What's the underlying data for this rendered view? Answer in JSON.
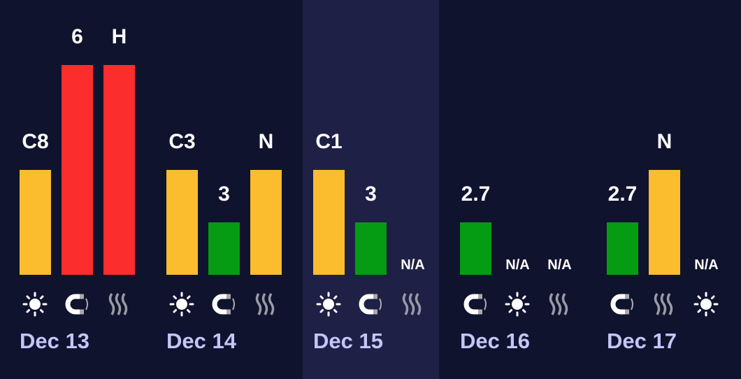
{
  "colors": {
    "yellow": "#fbbc2e",
    "red": "#fc2d2d",
    "green": "#059b12"
  },
  "days": [
    {
      "date": "Dec 13",
      "highlight": false,
      "items": [
        {
          "icon": "sun-icon",
          "label": "C8",
          "level": 0.5,
          "color": "yellow"
        },
        {
          "icon": "magnet-icon",
          "label": "6",
          "level": 1,
          "color": "red"
        },
        {
          "icon": "waves-icon",
          "label": "H",
          "level": 1,
          "color": "red"
        }
      ]
    },
    {
      "date": "Dec 14",
      "highlight": false,
      "items": [
        {
          "icon": "sun-icon",
          "label": "C3",
          "level": 0.5,
          "color": "yellow"
        },
        {
          "icon": "magnet-icon",
          "label": "3",
          "level": 0.25,
          "color": "green"
        },
        {
          "icon": "waves-icon",
          "label": "N",
          "level": 0.5,
          "color": "yellow"
        }
      ]
    },
    {
      "date": "Dec 15",
      "highlight": true,
      "items": [
        {
          "icon": "sun-icon",
          "label": "C1",
          "level": 0.5,
          "color": "yellow"
        },
        {
          "icon": "magnet-icon",
          "label": "3",
          "level": 0.25,
          "color": "green"
        },
        {
          "icon": "waves-icon",
          "label": "N/A",
          "level": 0,
          "color": null
        }
      ]
    },
    {
      "date": "Dec 16",
      "highlight": false,
      "items": [
        {
          "icon": "magnet-icon",
          "label": "2.7",
          "level": 0.25,
          "color": "green"
        },
        {
          "icon": "sun-icon",
          "label": "N/A",
          "level": 0,
          "color": null
        },
        {
          "icon": "waves-icon",
          "label": "N/A",
          "level": 0,
          "color": null
        }
      ]
    },
    {
      "date": "Dec 17",
      "highlight": false,
      "items": [
        {
          "icon": "magnet-icon",
          "label": "2.7",
          "level": 0.25,
          "color": "green"
        },
        {
          "icon": "waves-icon",
          "label": "N",
          "level": 0.5,
          "color": "yellow"
        },
        {
          "icon": "sun-icon",
          "label": "N/A",
          "level": 0,
          "color": null
        }
      ]
    }
  ]
}
